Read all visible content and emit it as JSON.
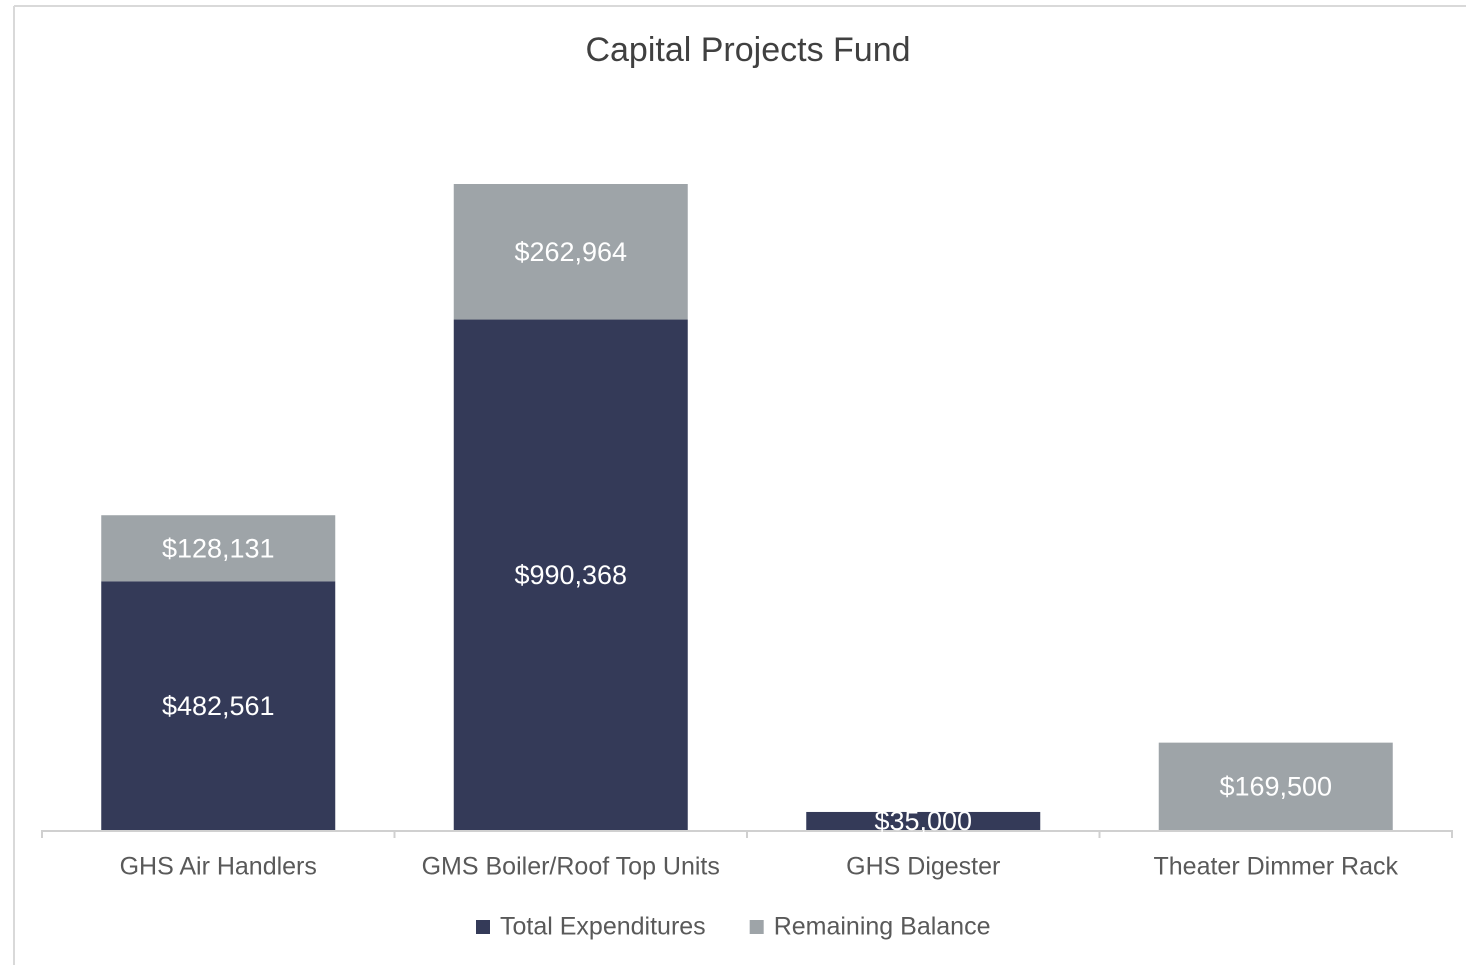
{
  "chart_data": {
    "type": "stacked_bar",
    "title": "Capital Projects Fund",
    "categories": [
      "GHS Air Handlers",
      "GMS Boiler/Roof Top Units",
      "GHS Digester",
      "Theater Dimmer Rack"
    ],
    "series": [
      {
        "name": "Total Expenditures",
        "color": "#343a58",
        "values": [
          482561,
          990368,
          35000,
          null
        ],
        "value_labels": [
          "$482,561",
          "$990,368",
          "$35,000",
          null
        ]
      },
      {
        "name": "Remaining Balance",
        "color": "#9ea4a8",
        "values": [
          128131,
          262964,
          null,
          169500
        ],
        "value_labels": [
          "$128,131",
          "$262,964",
          null,
          "$169,500"
        ]
      }
    ],
    "legend": "bottom"
  }
}
